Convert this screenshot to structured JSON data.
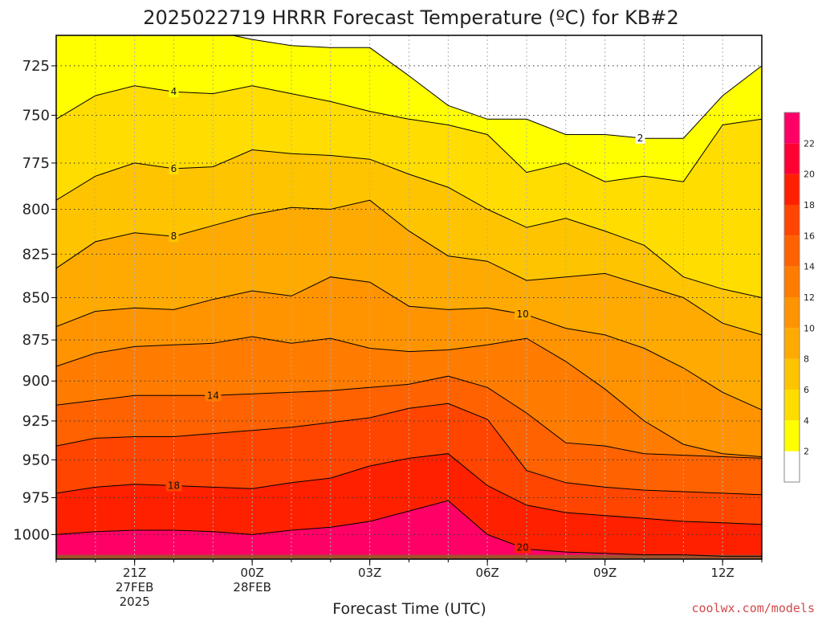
{
  "chart_data": {
    "type": "filled-contour",
    "title": "2025022719 HRRR Forecast Temperature (ºC) for KB#2",
    "xlabel": "Forecast Time (UTC)",
    "ylabel": "",
    "credit": "coolwx.com/models",
    "y_axis": {
      "scale": "log-pressure",
      "units": "hPa",
      "inverted": true,
      "ylim": [
        1017,
        710
      ],
      "ticks": [
        725,
        750,
        775,
        800,
        825,
        850,
        875,
        900,
        925,
        950,
        975,
        1000
      ]
    },
    "x_axis": {
      "hours_range": [
        -2,
        16
      ],
      "ticks": [
        {
          "h": 0,
          "lines": [
            "21Z",
            "27FEB",
            "2025"
          ]
        },
        {
          "h": 3,
          "lines": [
            "00Z",
            "28FEB"
          ]
        },
        {
          "h": 6,
          "lines": [
            "03Z"
          ]
        },
        {
          "h": 9,
          "lines": [
            "06Z"
          ]
        },
        {
          "h": 12,
          "lines": [
            "09Z"
          ]
        },
        {
          "h": 15,
          "lines": [
            "12Z"
          ]
        }
      ]
    },
    "grid": true,
    "colorbar": {
      "position": "right",
      "levels": [
        2,
        4,
        6,
        8,
        10,
        12,
        14,
        16,
        18,
        20,
        22
      ],
      "colors": [
        "#ffffff",
        "#ffff00",
        "#ffdd00",
        "#ffc400",
        "#ffaa00",
        "#ff9400",
        "#ff7c00",
        "#ff6200",
        "#ff4500",
        "#ff2000",
        "#ff0033",
        "#ff0066"
      ]
    },
    "hours": [
      -2,
      -1,
      0,
      1,
      2,
      3,
      4,
      5,
      6,
      7,
      8,
      9,
      10,
      11,
      12,
      13,
      14,
      15,
      16
    ],
    "contours": [
      {
        "value": 2,
        "p": [
          708,
          708,
          708,
          708,
          708,
          712,
          715,
          716,
          716,
          730,
          745,
          752,
          752,
          760,
          760,
          762,
          762,
          740,
          725
        ],
        "label": {
          "h": 12.9,
          "text": "2"
        }
      },
      {
        "value": 4,
        "p": [
          752,
          740,
          735,
          738,
          739,
          735,
          739,
          743,
          748,
          752,
          755,
          760,
          780,
          775,
          785,
          782,
          785,
          755,
          752
        ],
        "label": {
          "h": 1,
          "text": "4"
        }
      },
      {
        "value": 6,
        "p": [
          795,
          782,
          775,
          778,
          777,
          768,
          770,
          771,
          773,
          781,
          788,
          800,
          810,
          805,
          812,
          820,
          838,
          845,
          850
        ],
        "label": {
          "h": 1,
          "text": "6"
        }
      },
      {
        "value": 8,
        "p": [
          833,
          818,
          813,
          815,
          809,
          803,
          799,
          800,
          795,
          812,
          826,
          829,
          840,
          838,
          836,
          843,
          850,
          865,
          872
        ],
        "label": {
          "h": 1,
          "text": "8"
        }
      },
      {
        "value": 10,
        "p": [
          867,
          858,
          856,
          857,
          851,
          846,
          849,
          838,
          841,
          855,
          857,
          856,
          860,
          868,
          872,
          880,
          892,
          907,
          918
        ],
        "label": {
          "h": 9.9,
          "text": "10"
        }
      },
      {
        "value": 12,
        "p": [
          891,
          883,
          879,
          878,
          877,
          873,
          877,
          874,
          880,
          882,
          881,
          878,
          874,
          888,
          905,
          925,
          940,
          946,
          948
        ],
        "label": null
      },
      {
        "value": 14,
        "p": [
          915,
          912,
          909,
          909,
          909,
          908,
          907,
          906,
          904,
          902,
          897,
          904,
          920,
          939,
          941,
          946,
          947,
          948,
          949
        ],
        "label": {
          "h": 2,
          "text": "14"
        }
      },
      {
        "value": 16,
        "p": [
          941,
          936,
          935,
          935,
          933,
          931,
          929,
          926,
          923,
          917,
          914,
          924,
          957,
          965,
          968,
          970,
          971,
          972,
          973
        ],
        "label": null
      },
      {
        "value": 18,
        "p": [
          972,
          968,
          966,
          967,
          968,
          969,
          965,
          962,
          954,
          949,
          946,
          967,
          980,
          985,
          987,
          989,
          991,
          992,
          993
        ],
        "label": {
          "h": 1,
          "text": "18"
        }
      },
      {
        "value": 20,
        "p": [
          1000,
          998,
          997,
          997,
          998,
          1000,
          997,
          995,
          991,
          984,
          977,
          1000,
          1010,
          1012,
          1013,
          1014,
          1014,
          1015,
          1015
        ],
        "label": {
          "h": 9.9,
          "text": "20"
        }
      }
    ]
  }
}
